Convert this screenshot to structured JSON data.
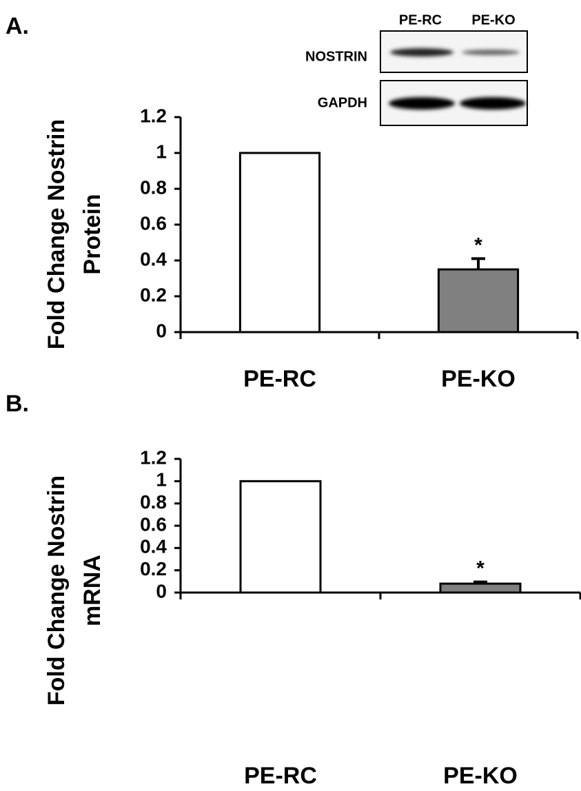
{
  "chart_data": [
    {
      "type": "bar",
      "panel": "A.",
      "ylabel": [
        "Fold Change Nostrin",
        "Protein"
      ],
      "categories": [
        "PE-RC",
        "PE-KO"
      ],
      "values": [
        1,
        0.35
      ],
      "errors": [
        null,
        0.06
      ],
      "colors": [
        "#ffffff",
        "#808080"
      ],
      "annotation": "*",
      "ylim": [
        0,
        1.2
      ],
      "yticks": [
        0,
        0.2,
        0.4,
        0.6,
        0.8,
        1,
        1.2
      ],
      "blot": {
        "lanes": [
          "PE-RC",
          "PE-KO"
        ],
        "rows": [
          "NOSTRIN",
          "GAPDH"
        ]
      }
    },
    {
      "type": "bar",
      "panel": "B.",
      "ylabel": [
        "Fold Change Nostrin",
        "mRNA"
      ],
      "categories": [
        "PE-RC",
        "PE-KO"
      ],
      "values": [
        1,
        0.08
      ],
      "errors": [
        null,
        0.015
      ],
      "colors": [
        "#ffffff",
        "#808080"
      ],
      "annotation": "*",
      "ylim": [
        0,
        1.2
      ],
      "yticks": [
        0,
        0.2,
        0.4,
        0.6,
        0.8,
        1,
        1.2
      ]
    }
  ]
}
